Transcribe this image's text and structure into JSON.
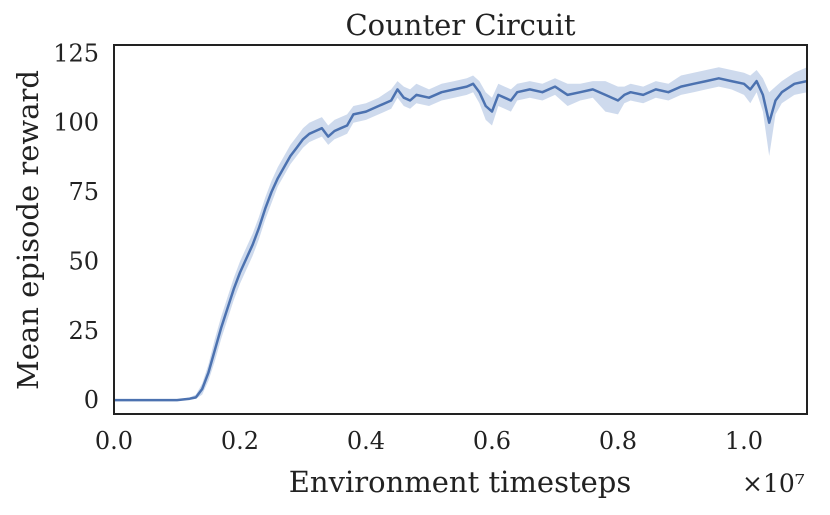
{
  "chart_data": {
    "type": "line",
    "title": "Counter Circuit",
    "xlabel": "Environment timesteps",
    "ylabel": "Mean episode reward",
    "x_multiplier": "×10⁷",
    "xlim": [
      0.0,
      1.1
    ],
    "ylim": [
      -5,
      128
    ],
    "xticks": [
      0.0,
      0.2,
      0.4,
      0.6,
      0.8,
      1.0
    ],
    "xtick_labels": [
      "0.0",
      "0.2",
      "0.4",
      "0.6",
      "0.8",
      "1.0"
    ],
    "yticks": [
      0,
      25,
      50,
      75,
      100,
      125
    ],
    "ytick_labels": [
      "0",
      "25",
      "50",
      "75",
      "100",
      "125"
    ],
    "grid": false,
    "series": [
      {
        "color": "#4c72b0",
        "band_color": "#c6d4ea",
        "x": [
          0.0,
          0.05,
          0.1,
          0.12,
          0.13,
          0.14,
          0.15,
          0.16,
          0.17,
          0.18,
          0.19,
          0.2,
          0.21,
          0.22,
          0.23,
          0.24,
          0.25,
          0.26,
          0.27,
          0.28,
          0.29,
          0.3,
          0.31,
          0.32,
          0.33,
          0.34,
          0.35,
          0.36,
          0.37,
          0.38,
          0.4,
          0.42,
          0.44,
          0.45,
          0.46,
          0.47,
          0.48,
          0.5,
          0.52,
          0.54,
          0.56,
          0.57,
          0.58,
          0.59,
          0.6,
          0.61,
          0.62,
          0.63,
          0.64,
          0.66,
          0.68,
          0.7,
          0.72,
          0.74,
          0.76,
          0.78,
          0.8,
          0.81,
          0.82,
          0.84,
          0.86,
          0.88,
          0.9,
          0.92,
          0.94,
          0.96,
          0.98,
          1.0,
          1.01,
          1.02,
          1.03,
          1.04,
          1.05,
          1.06,
          1.08,
          1.1
        ],
        "y": [
          0,
          0,
          0,
          0.5,
          1,
          4,
          10,
          18,
          26,
          33,
          40,
          46,
          51,
          56,
          62,
          69,
          75,
          80,
          84,
          88,
          91,
          94,
          96,
          97,
          98,
          95,
          97,
          98,
          99,
          103,
          104,
          106,
          108,
          112,
          109,
          108,
          110,
          109,
          111,
          112,
          113,
          114,
          111,
          106,
          104,
          110,
          109,
          108,
          111,
          112,
          111,
          113,
          110,
          111,
          112,
          110,
          108,
          110,
          111,
          110,
          112,
          111,
          113,
          114,
          115,
          116,
          115,
          114,
          112,
          115,
          110,
          100,
          108,
          111,
          114,
          115
        ],
        "band_lower": [
          0,
          0,
          0,
          0,
          0.5,
          2,
          7,
          14,
          22,
          29,
          36,
          42,
          47,
          52,
          58,
          65,
          71,
          77,
          81,
          85,
          88,
          91,
          93,
          94,
          95,
          92,
          94,
          95,
          96,
          100,
          101,
          103,
          105,
          109,
          106,
          105,
          107,
          106,
          108,
          109,
          110,
          111,
          107,
          101,
          99,
          106,
          105,
          104,
          108,
          109,
          108,
          110,
          106,
          108,
          109,
          104,
          103,
          107,
          108,
          107,
          109,
          108,
          110,
          111,
          112,
          113,
          112,
          110,
          107,
          111,
          104,
          88,
          103,
          107,
          110,
          111
        ],
        "band_upper": [
          0,
          0,
          0,
          1,
          2,
          6,
          13,
          22,
          30,
          37,
          44,
          50,
          55,
          60,
          66,
          73,
          79,
          84,
          88,
          92,
          95,
          98,
          100,
          101,
          102,
          99,
          101,
          102,
          103,
          106,
          107,
          109,
          112,
          115,
          113,
          112,
          114,
          112,
          114,
          115,
          116,
          117,
          115,
          111,
          109,
          114,
          113,
          112,
          114,
          115,
          114,
          116,
          114,
          114,
          115,
          115,
          113,
          113,
          114,
          113,
          115,
          114,
          117,
          118,
          119,
          120,
          119,
          118,
          117,
          119,
          116,
          111,
          113,
          115,
          118,
          120
        ]
      }
    ]
  }
}
